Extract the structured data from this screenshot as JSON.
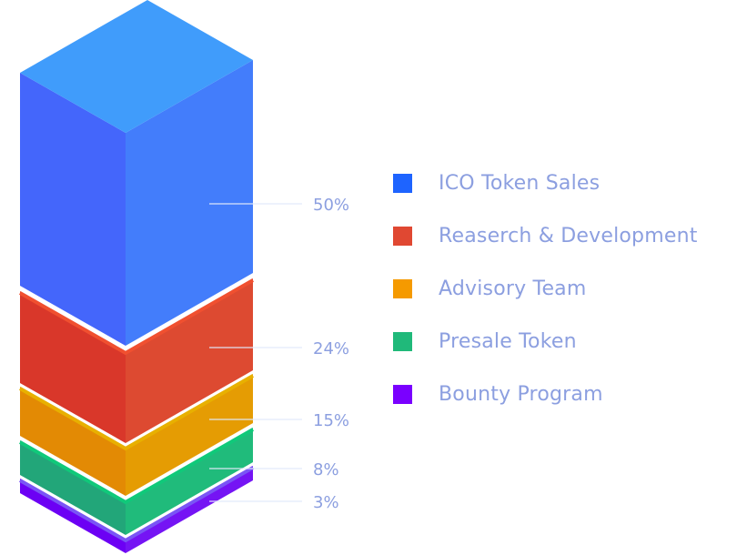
{
  "chart_data": {
    "type": "stacked-3d-bar",
    "categories": [
      "ICO Token Sales",
      "Reaserch & Development",
      "Advisory Team",
      "Presale Token",
      "Bounty Program"
    ],
    "values": [
      50,
      24,
      15,
      8,
      3
    ],
    "labels": [
      "50%",
      "24%",
      "15%",
      "8%",
      "3%"
    ],
    "colors": [
      "#1e64ff",
      "#e04832",
      "#f59a00",
      "#20b97a",
      "#7a00ff"
    ],
    "legend_position": "right"
  }
}
